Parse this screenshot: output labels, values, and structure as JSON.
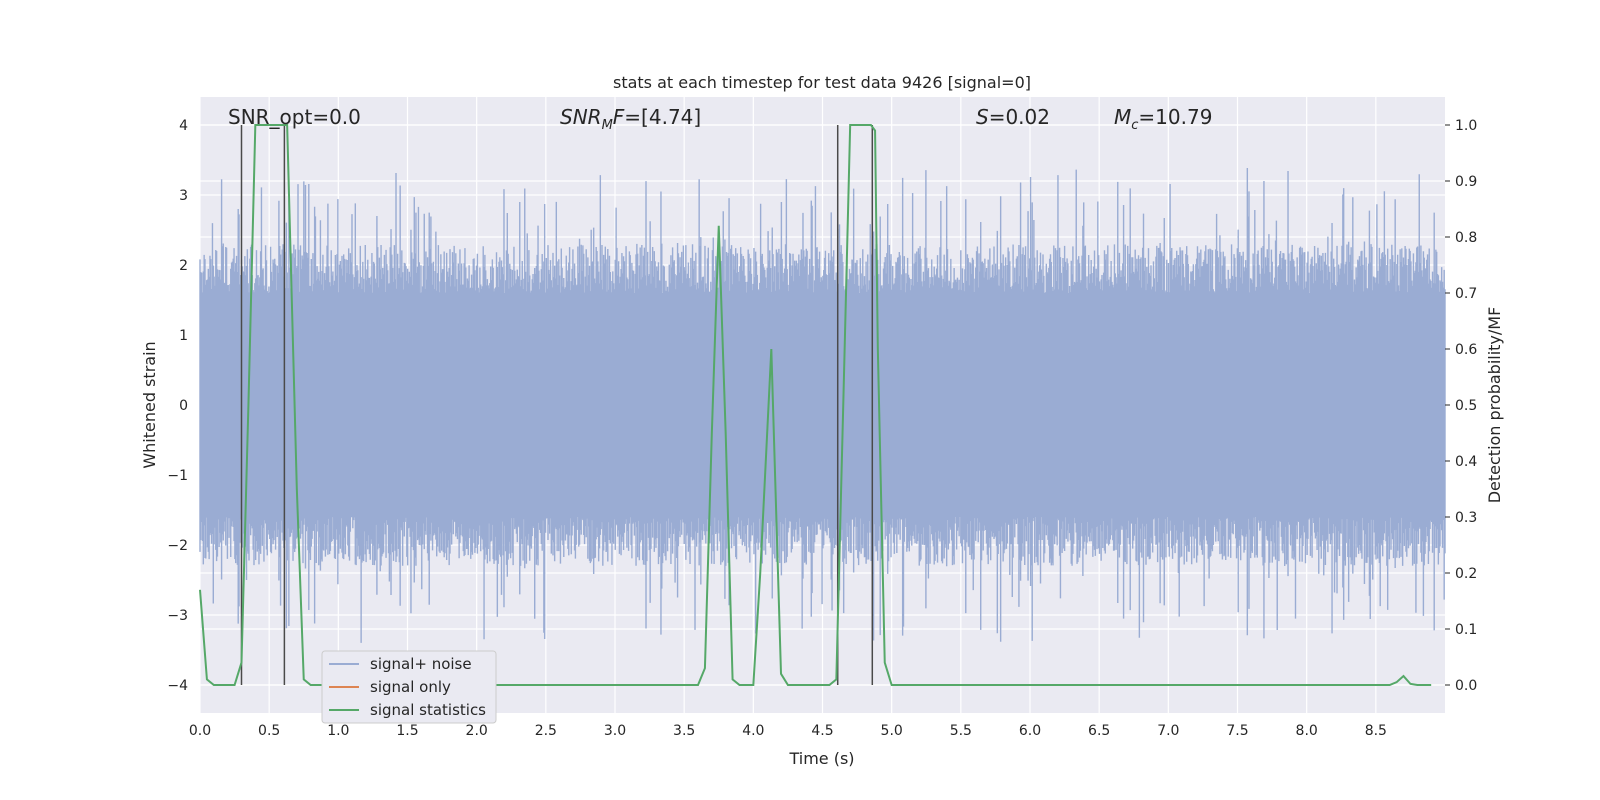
{
  "chart_data": {
    "type": "line",
    "title": "stats at each timestep for test data 9426 [signal=0]",
    "xlabel": "Time (s)",
    "ylabel": "Whitened strain",
    "ylabel_right": "Detection probability/MF",
    "xlim": [
      0.0,
      9.0
    ],
    "ylim": [
      -4.4,
      4.4
    ],
    "ylim_right": [
      -0.05,
      1.05
    ],
    "x_ticks": [
      "0.0",
      "0.5",
      "1.0",
      "1.5",
      "2.0",
      "2.5",
      "3.0",
      "3.5",
      "4.0",
      "4.5",
      "5.0",
      "5.5",
      "6.0",
      "6.5",
      "7.0",
      "7.5",
      "8.0",
      "8.5"
    ],
    "y_ticks": [
      "−4",
      "−3",
      "−2",
      "−1",
      "0",
      "1",
      "2",
      "3",
      "4"
    ],
    "y_ticks_right": [
      "0.0",
      "0.1",
      "0.2",
      "0.3",
      "0.4",
      "0.5",
      "0.6",
      "0.7",
      "0.8",
      "0.9",
      "1.0"
    ],
    "grid": true,
    "legend_position": "lower-left",
    "annotations": {
      "snr_opt": "SNR_opt=0.0",
      "snr_mf": "=[4.74]",
      "s_value": "=0.02",
      "mc_value": "=10.79"
    },
    "series": [
      {
        "name": "signal+ noise",
        "axis": "left",
        "color": "#9aacd3",
        "style": "dense noise, approx. ±1.6 core band, spikes to ±3.6",
        "envelope": {
          "core": 1.6,
          "peak": 3.6
        }
      },
      {
        "name": "signal only",
        "axis": "left",
        "color": "#dd8452",
        "values": []
      },
      {
        "name": "signal statistics",
        "axis": "right",
        "color": "#55a868",
        "x": [
          0.0,
          0.05,
          0.1,
          0.15,
          0.2,
          0.25,
          0.3,
          0.35,
          0.4,
          0.45,
          0.5,
          0.55,
          0.6,
          0.63,
          0.7,
          0.75,
          0.8,
          0.85,
          0.9,
          1.0,
          1.5,
          2.0,
          2.5,
          3.0,
          3.5,
          3.6,
          3.65,
          3.7,
          3.75,
          3.8,
          3.85,
          3.9,
          3.95,
          4.0,
          4.05,
          4.1,
          4.13,
          4.2,
          4.25,
          4.3,
          4.35,
          4.4,
          4.45,
          4.5,
          4.55,
          4.6,
          4.65,
          4.7,
          4.75,
          4.8,
          4.85,
          4.88,
          4.9,
          4.95,
          5.0,
          5.5,
          6.0,
          6.5,
          7.0,
          7.5,
          8.0,
          8.5,
          8.6,
          8.65,
          8.7,
          8.75,
          8.8,
          8.85,
          8.9
        ],
        "values": [
          0.17,
          0.01,
          0.0,
          0.0,
          0.0,
          0.0,
          0.04,
          0.5,
          1.0,
          1.0,
          1.0,
          1.0,
          1.0,
          1.0,
          0.35,
          0.01,
          0.0,
          0.0,
          0.0,
          0.0,
          0.0,
          0.0,
          0.0,
          0.0,
          0.0,
          0.0,
          0.03,
          0.45,
          0.82,
          0.45,
          0.01,
          0.0,
          0.0,
          0.0,
          0.2,
          0.45,
          0.6,
          0.02,
          0.0,
          0.0,
          0.0,
          0.0,
          0.0,
          0.0,
          0.0,
          0.01,
          0.5,
          1.0,
          1.0,
          1.0,
          1.0,
          0.99,
          0.6,
          0.04,
          0.0,
          0.0,
          0.0,
          0.0,
          0.0,
          0.0,
          0.0,
          0.0,
          0.0,
          0.005,
          0.016,
          0.002,
          0.0,
          0.0,
          0.0
        ]
      }
    ],
    "vertical_markers": [
      0.3,
      0.61,
      4.61,
      4.86
    ]
  },
  "colors": {
    "plot_bg": "#eaeaf2",
    "grid": "#ffffff",
    "noise": "#9aacd3",
    "signal_only": "#dd8452",
    "statistics": "#55a868",
    "marker": "#4a4a4a"
  }
}
